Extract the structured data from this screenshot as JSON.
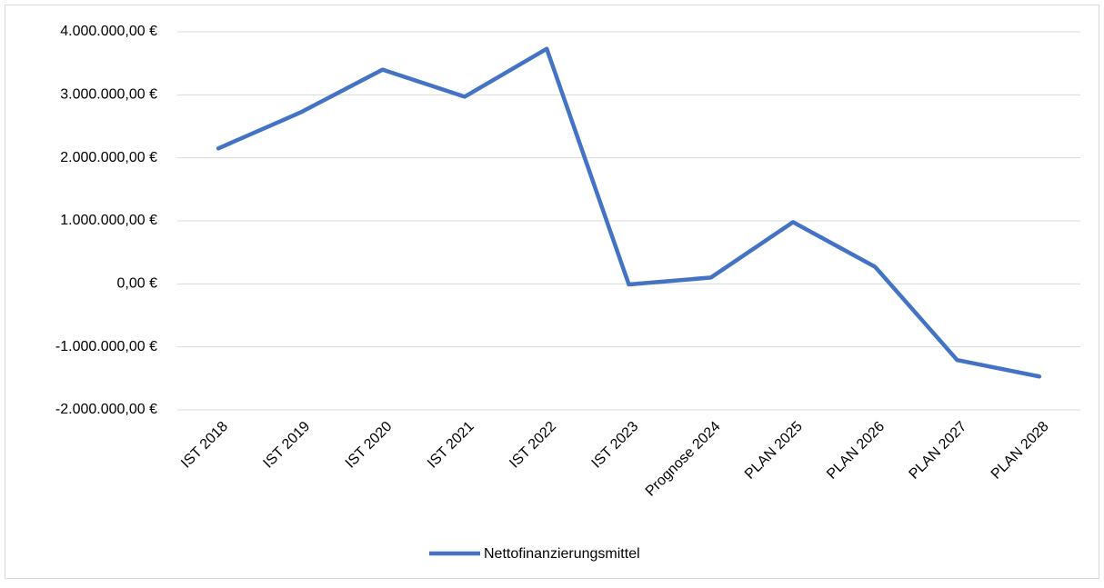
{
  "chart_data": {
    "type": "line",
    "categories": [
      "IST 2018",
      "IST 2019",
      "IST 2020",
      "IST 2021",
      "IST 2022",
      "IST 2023",
      "Prognose 2024",
      "PLAN 2025",
      "PLAN 2026",
      "PLAN 2027",
      "PLAN 2028"
    ],
    "series": [
      {
        "name": "Nettofinanzierungsmittel",
        "color": "#4472c4",
        "values": [
          2150000,
          2720000,
          3400000,
          2970000,
          3730000,
          -10000,
          100000,
          980000,
          270000,
          -1210000,
          -1470000
        ]
      }
    ],
    "ylim": [
      -2000000,
      4000000
    ],
    "yticks": [
      {
        "value": -2000000,
        "label": "-2.000.000,00 €"
      },
      {
        "value": -1000000,
        "label": "-1.000.000,00 €"
      },
      {
        "value": 0,
        "label": "0,00 €"
      },
      {
        "value": 1000000,
        "label": "1.000.000,00 €"
      },
      {
        "value": 2000000,
        "label": "2.000.000,00 €"
      },
      {
        "value": 3000000,
        "label": "3.000.000,00 €"
      },
      {
        "value": 4000000,
        "label": "4.000.000,00 €"
      }
    ],
    "grid": true,
    "legend": "bottom"
  }
}
